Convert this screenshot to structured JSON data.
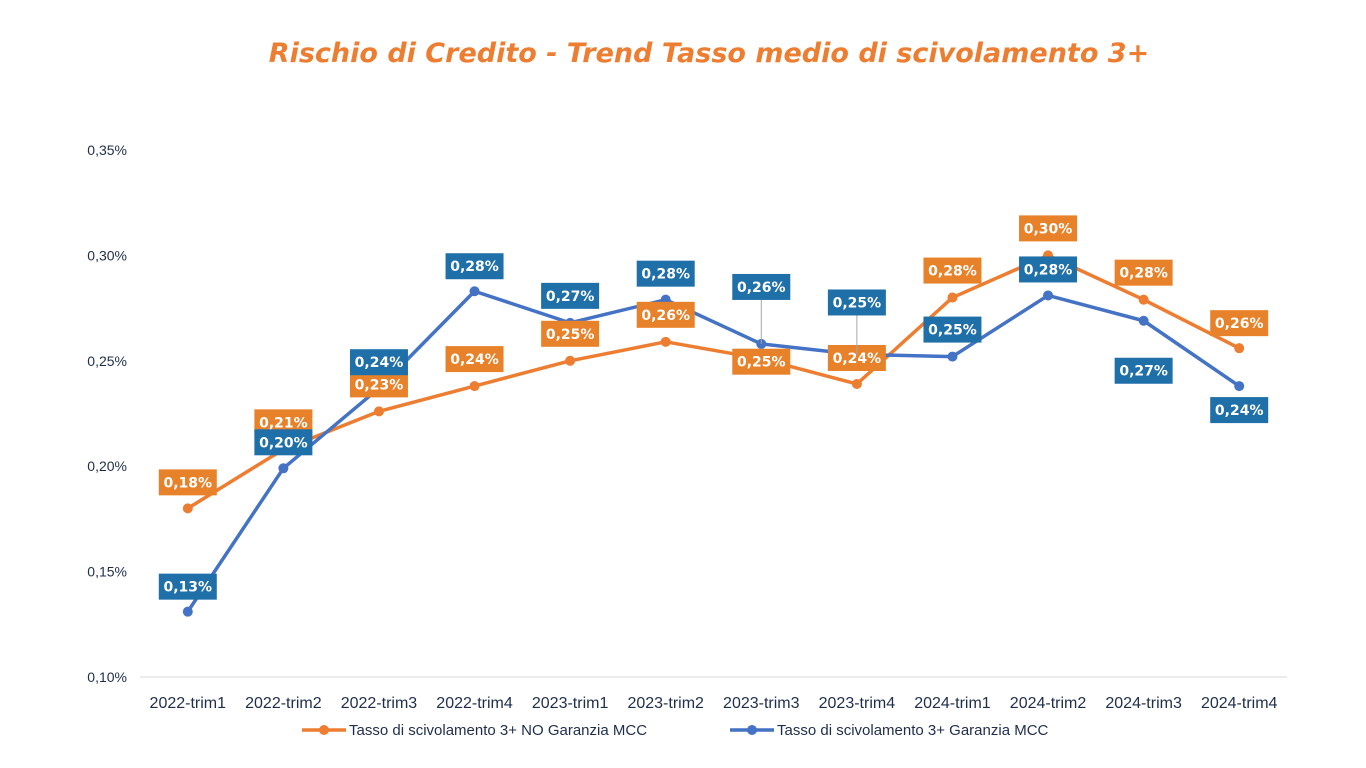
{
  "chart_data": {
    "type": "line",
    "title": "Rischio di Credito - Trend Tasso medio di scivolamento 3+",
    "xlabel": "",
    "ylabel": "",
    "ylim": [
      0.1,
      0.35
    ],
    "yticks": [
      "0,10%",
      "0,15%",
      "0,20%",
      "0,25%",
      "0,30%",
      "0,35%"
    ],
    "ytick_values": [
      0.1,
      0.15,
      0.2,
      0.25,
      0.3,
      0.35
    ],
    "grid": false,
    "legend_position": "bottom",
    "categories": [
      "2022-trim1",
      "2022-trim2",
      "2022-trim3",
      "2022-trim4",
      "2023-trim1",
      "2023-trim2",
      "2023-trim3",
      "2023-trim4",
      "2024-trim1",
      "2024-trim2",
      "2024-trim3",
      "2024-trim4"
    ],
    "series": [
      {
        "name": "Tasso di scivolamento 3+ NO Garanzia MCC",
        "color": "#ED7D31",
        "label_bg": "#E8822A",
        "values": [
          0.18,
          0.208,
          0.226,
          0.238,
          0.25,
          0.259,
          0.251,
          0.239,
          0.28,
          0.3,
          0.279,
          0.256
        ],
        "labels": [
          "0,18%",
          "0,21%",
          "0,23%",
          "0,24%",
          "0,25%",
          "0,26%",
          "0,25%",
          "0,24%",
          "0,28%",
          "0,30%",
          "0,28%",
          "0,26%"
        ]
      },
      {
        "name": "Tasso di scivolamento 3+ Garanzia MCC",
        "color": "#4472C4",
        "label_bg": "#1F6FA8",
        "values": [
          0.131,
          0.199,
          0.237,
          0.283,
          0.268,
          0.279,
          0.258,
          0.253,
          0.252,
          0.281,
          0.269,
          0.238
        ],
        "labels": [
          "0,13%",
          "0,20%",
          "0,24%",
          "0,28%",
          "0,27%",
          "0,28%",
          "0,26%",
          "0,25%",
          "0,25%",
          "0,28%",
          "0,27%",
          "0,24%"
        ]
      }
    ]
  }
}
